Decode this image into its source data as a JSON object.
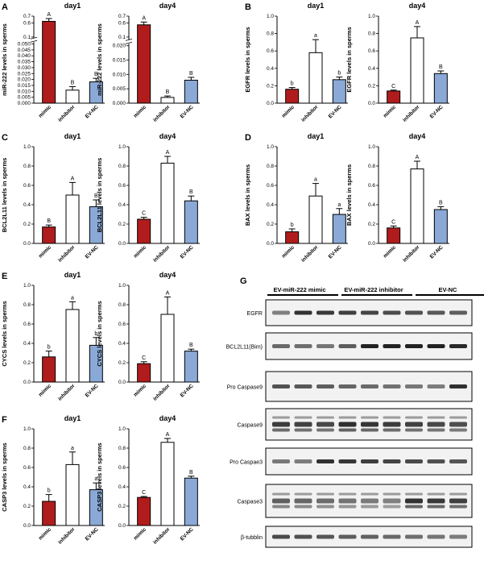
{
  "figure": {
    "colors": {
      "mimic": "#b01c1c",
      "inhibitor": "#ffffff",
      "evnc": "#8aa9d6",
      "axis": "#000000"
    },
    "charts": [
      {
        "id": "A1",
        "letter": "A",
        "title": "day1",
        "ylabel": "miR-222 levels in sperms",
        "yticks": [
          "0.000",
          "0.005",
          "0.010",
          "0.015",
          "0.020",
          "0.025",
          "0.030",
          "0.035",
          "0.040",
          "0.045",
          "0.050",
          "0.1",
          "0.6",
          "0.7"
        ]
      },
      {
        "id": "A2",
        "title": "day4",
        "ylabel": "miR-222 levels in sperms",
        "yticks": [
          "0.000",
          "0.005",
          "0.010",
          "0.015",
          "0.020",
          "0.1",
          "0.6",
          "0.7"
        ]
      },
      {
        "id": "B1",
        "letter": "B",
        "title": "day1",
        "ylabel": "EGFR levels in sperms",
        "yticks": [
          "0.0",
          "0.2",
          "0.4",
          "0.6",
          "0.8",
          "1.0"
        ]
      },
      {
        "id": "B2",
        "title": "day4",
        "ylabel": "EGFR levels in sperms",
        "yticks": [
          "0.0",
          "0.2",
          "0.4",
          "0.6",
          "0.8",
          "1.0"
        ]
      },
      {
        "id": "C1",
        "letter": "C",
        "title": "day1",
        "ylabel": "BCL2L11 levels in sperms",
        "yticks": [
          "0.0",
          "0.2",
          "0.4",
          "0.6",
          "0.8",
          "1.0"
        ]
      },
      {
        "id": "C2",
        "title": "day4",
        "ylabel": "BCL2L11 levels in sperms",
        "yticks": [
          "0.0",
          "0.2",
          "0.4",
          "0.6",
          "0.8",
          "1.0"
        ]
      },
      {
        "id": "D1",
        "letter": "D",
        "title": "day1",
        "ylabel": "BAX levels in sperms",
        "yticks": [
          "0.0",
          "0.2",
          "0.4",
          "0.6",
          "0.8",
          "1.0"
        ]
      },
      {
        "id": "D2",
        "title": "day4",
        "ylabel": "BAX levels in sperms",
        "yticks": [
          "0.0",
          "0.2",
          "0.4",
          "0.6",
          "0.8",
          "1.0"
        ]
      },
      {
        "id": "E1",
        "letter": "E",
        "title": "day1",
        "ylabel": "CYCS levels in sperms",
        "yticks": [
          "0.0",
          "0.2",
          "0.4",
          "0.6",
          "0.8",
          "1.0"
        ]
      },
      {
        "id": "E2",
        "title": "day4",
        "ylabel": "CYCS levels in sperms",
        "yticks": [
          "0.0",
          "0.2",
          "0.4",
          "0.6",
          "0.8",
          "1.0"
        ]
      },
      {
        "id": "F1",
        "letter": "F",
        "title": "day1",
        "ylabel": "CASP3 levels in sperms",
        "yticks": [
          "0.0",
          "0.2",
          "0.4",
          "0.6",
          "0.8",
          "1.0"
        ]
      },
      {
        "id": "F2",
        "title": "day4",
        "ylabel": "CASP3 levels in sperms",
        "yticks": [
          "0.0",
          "0.2",
          "0.4",
          "0.6",
          "0.8",
          "1.0"
        ]
      }
    ],
    "blot": {
      "letter": "G",
      "groups": [
        "EV-miR-222 mimic",
        "EV-miR-222 inhibitor",
        "EV-NC"
      ],
      "rows": [
        "EGFR",
        "BCL2L11(Bim)",
        "Pro Caspase9",
        "Caspase9",
        "Pro Caspae3",
        "Caspase3",
        "β-tubblin"
      ]
    }
  },
  "chart_data": [
    {
      "type": "bar",
      "panel": "A",
      "title": "day1",
      "ylabel": "miR-222 levels in sperms",
      "categories": [
        "mimic",
        "inhibitor",
        "EV-NC"
      ],
      "values": [
        0.55,
        0.011,
        0.018
      ],
      "errors": [
        0.08,
        0.003,
        0.003
      ],
      "significance": [
        "A",
        "B",
        "B"
      ],
      "ylim": [
        0,
        0.7
      ],
      "axis_break": [
        0.05,
        0.1
      ]
    },
    {
      "type": "bar",
      "panel": "A",
      "title": "day4",
      "ylabel": "miR-222 levels in sperms",
      "categories": [
        "mimic",
        "inhibitor",
        "EV-NC"
      ],
      "values": [
        0.45,
        0.002,
        0.008
      ],
      "errors": [
        0.08,
        0.0005,
        0.001
      ],
      "significance": [
        "A",
        "B",
        "B"
      ],
      "ylim": [
        0,
        0.7
      ],
      "axis_break": [
        0.02,
        0.1
      ]
    },
    {
      "type": "bar",
      "panel": "B",
      "title": "day1",
      "ylabel": "EGFR levels in sperms",
      "categories": [
        "mimic",
        "inhibitor",
        "EV-NC"
      ],
      "values": [
        0.16,
        0.58,
        0.27
      ],
      "errors": [
        0.02,
        0.15,
        0.03
      ],
      "significance": [
        "b",
        "a",
        "b"
      ],
      "ylim": [
        0,
        1.0
      ]
    },
    {
      "type": "bar",
      "panel": "B",
      "title": "day4",
      "ylabel": "EGFR levels in sperms",
      "categories": [
        "mimic",
        "inhibitor",
        "EV-NC"
      ],
      "values": [
        0.14,
        0.75,
        0.34
      ],
      "errors": [
        0.01,
        0.13,
        0.03
      ],
      "significance": [
        "C",
        "A",
        "B"
      ],
      "ylim": [
        0,
        1.0
      ]
    },
    {
      "type": "bar",
      "panel": "C",
      "title": "day1",
      "ylabel": "BCL2L11 levels in sperms",
      "categories": [
        "mimic",
        "inhibitor",
        "EV-NC"
      ],
      "values": [
        0.17,
        0.5,
        0.38
      ],
      "errors": [
        0.02,
        0.13,
        0.07
      ],
      "significance": [
        "B",
        "A",
        "B"
      ],
      "ylim": [
        0,
        1.0
      ]
    },
    {
      "type": "bar",
      "panel": "C",
      "title": "day4",
      "ylabel": "BCL2L11 levels in sperms",
      "categories": [
        "mimic",
        "inhibitor",
        "EV-NC"
      ],
      "values": [
        0.25,
        0.83,
        0.44
      ],
      "errors": [
        0.02,
        0.07,
        0.05
      ],
      "significance": [
        "C",
        "A",
        "B"
      ],
      "ylim": [
        0,
        1.0
      ]
    },
    {
      "type": "bar",
      "panel": "D",
      "title": "day1",
      "ylabel": "BAX levels in sperms",
      "categories": [
        "mimic",
        "inhibitor",
        "EV-NC"
      ],
      "values": [
        0.12,
        0.49,
        0.3
      ],
      "errors": [
        0.03,
        0.13,
        0.06
      ],
      "significance": [
        "b",
        "a",
        "a"
      ],
      "ylim": [
        0,
        1.0
      ]
    },
    {
      "type": "bar",
      "panel": "D",
      "title": "day4",
      "ylabel": "BAX levels in sperms",
      "categories": [
        "mimic",
        "inhibitor",
        "EV-NC"
      ],
      "values": [
        0.16,
        0.77,
        0.35
      ],
      "errors": [
        0.02,
        0.08,
        0.03
      ],
      "significance": [
        "C",
        "A",
        "B"
      ],
      "ylim": [
        0,
        1.0
      ]
    },
    {
      "type": "bar",
      "panel": "E",
      "title": "day1",
      "ylabel": "CYCS levels in sperms",
      "categories": [
        "mimic",
        "inhibitor",
        "EV-NC"
      ],
      "values": [
        0.26,
        0.75,
        0.38
      ],
      "errors": [
        0.06,
        0.08,
        0.08
      ],
      "significance": [
        "b",
        "a",
        "b"
      ],
      "ylim": [
        0,
        1.0
      ]
    },
    {
      "type": "bar",
      "panel": "E",
      "title": "day4",
      "ylabel": "CYCS levels in sperms",
      "categories": [
        "mimic",
        "inhibitor",
        "EV-NC"
      ],
      "values": [
        0.19,
        0.7,
        0.32
      ],
      "errors": [
        0.02,
        0.18,
        0.02
      ],
      "significance": [
        "C",
        "A",
        "B"
      ],
      "ylim": [
        0,
        1.0
      ]
    },
    {
      "type": "bar",
      "panel": "F",
      "title": "day1",
      "ylabel": "CASP3 levels in sperms",
      "categories": [
        "mimic",
        "inhibitor",
        "EV-NC"
      ],
      "values": [
        0.25,
        0.63,
        0.37
      ],
      "errors": [
        0.07,
        0.13,
        0.07
      ],
      "significance": [
        "b",
        "a",
        "a"
      ],
      "ylim": [
        0,
        1.0
      ]
    },
    {
      "type": "bar",
      "panel": "F",
      "title": "day4",
      "ylabel": "CASP3 levels in sperms",
      "categories": [
        "mimic",
        "inhibitor",
        "EV-NC"
      ],
      "values": [
        0.29,
        0.86,
        0.49
      ],
      "errors": [
        0.01,
        0.04,
        0.02
      ],
      "significance": [
        "C",
        "A",
        "B"
      ],
      "ylim": [
        0,
        1.0
      ]
    }
  ]
}
